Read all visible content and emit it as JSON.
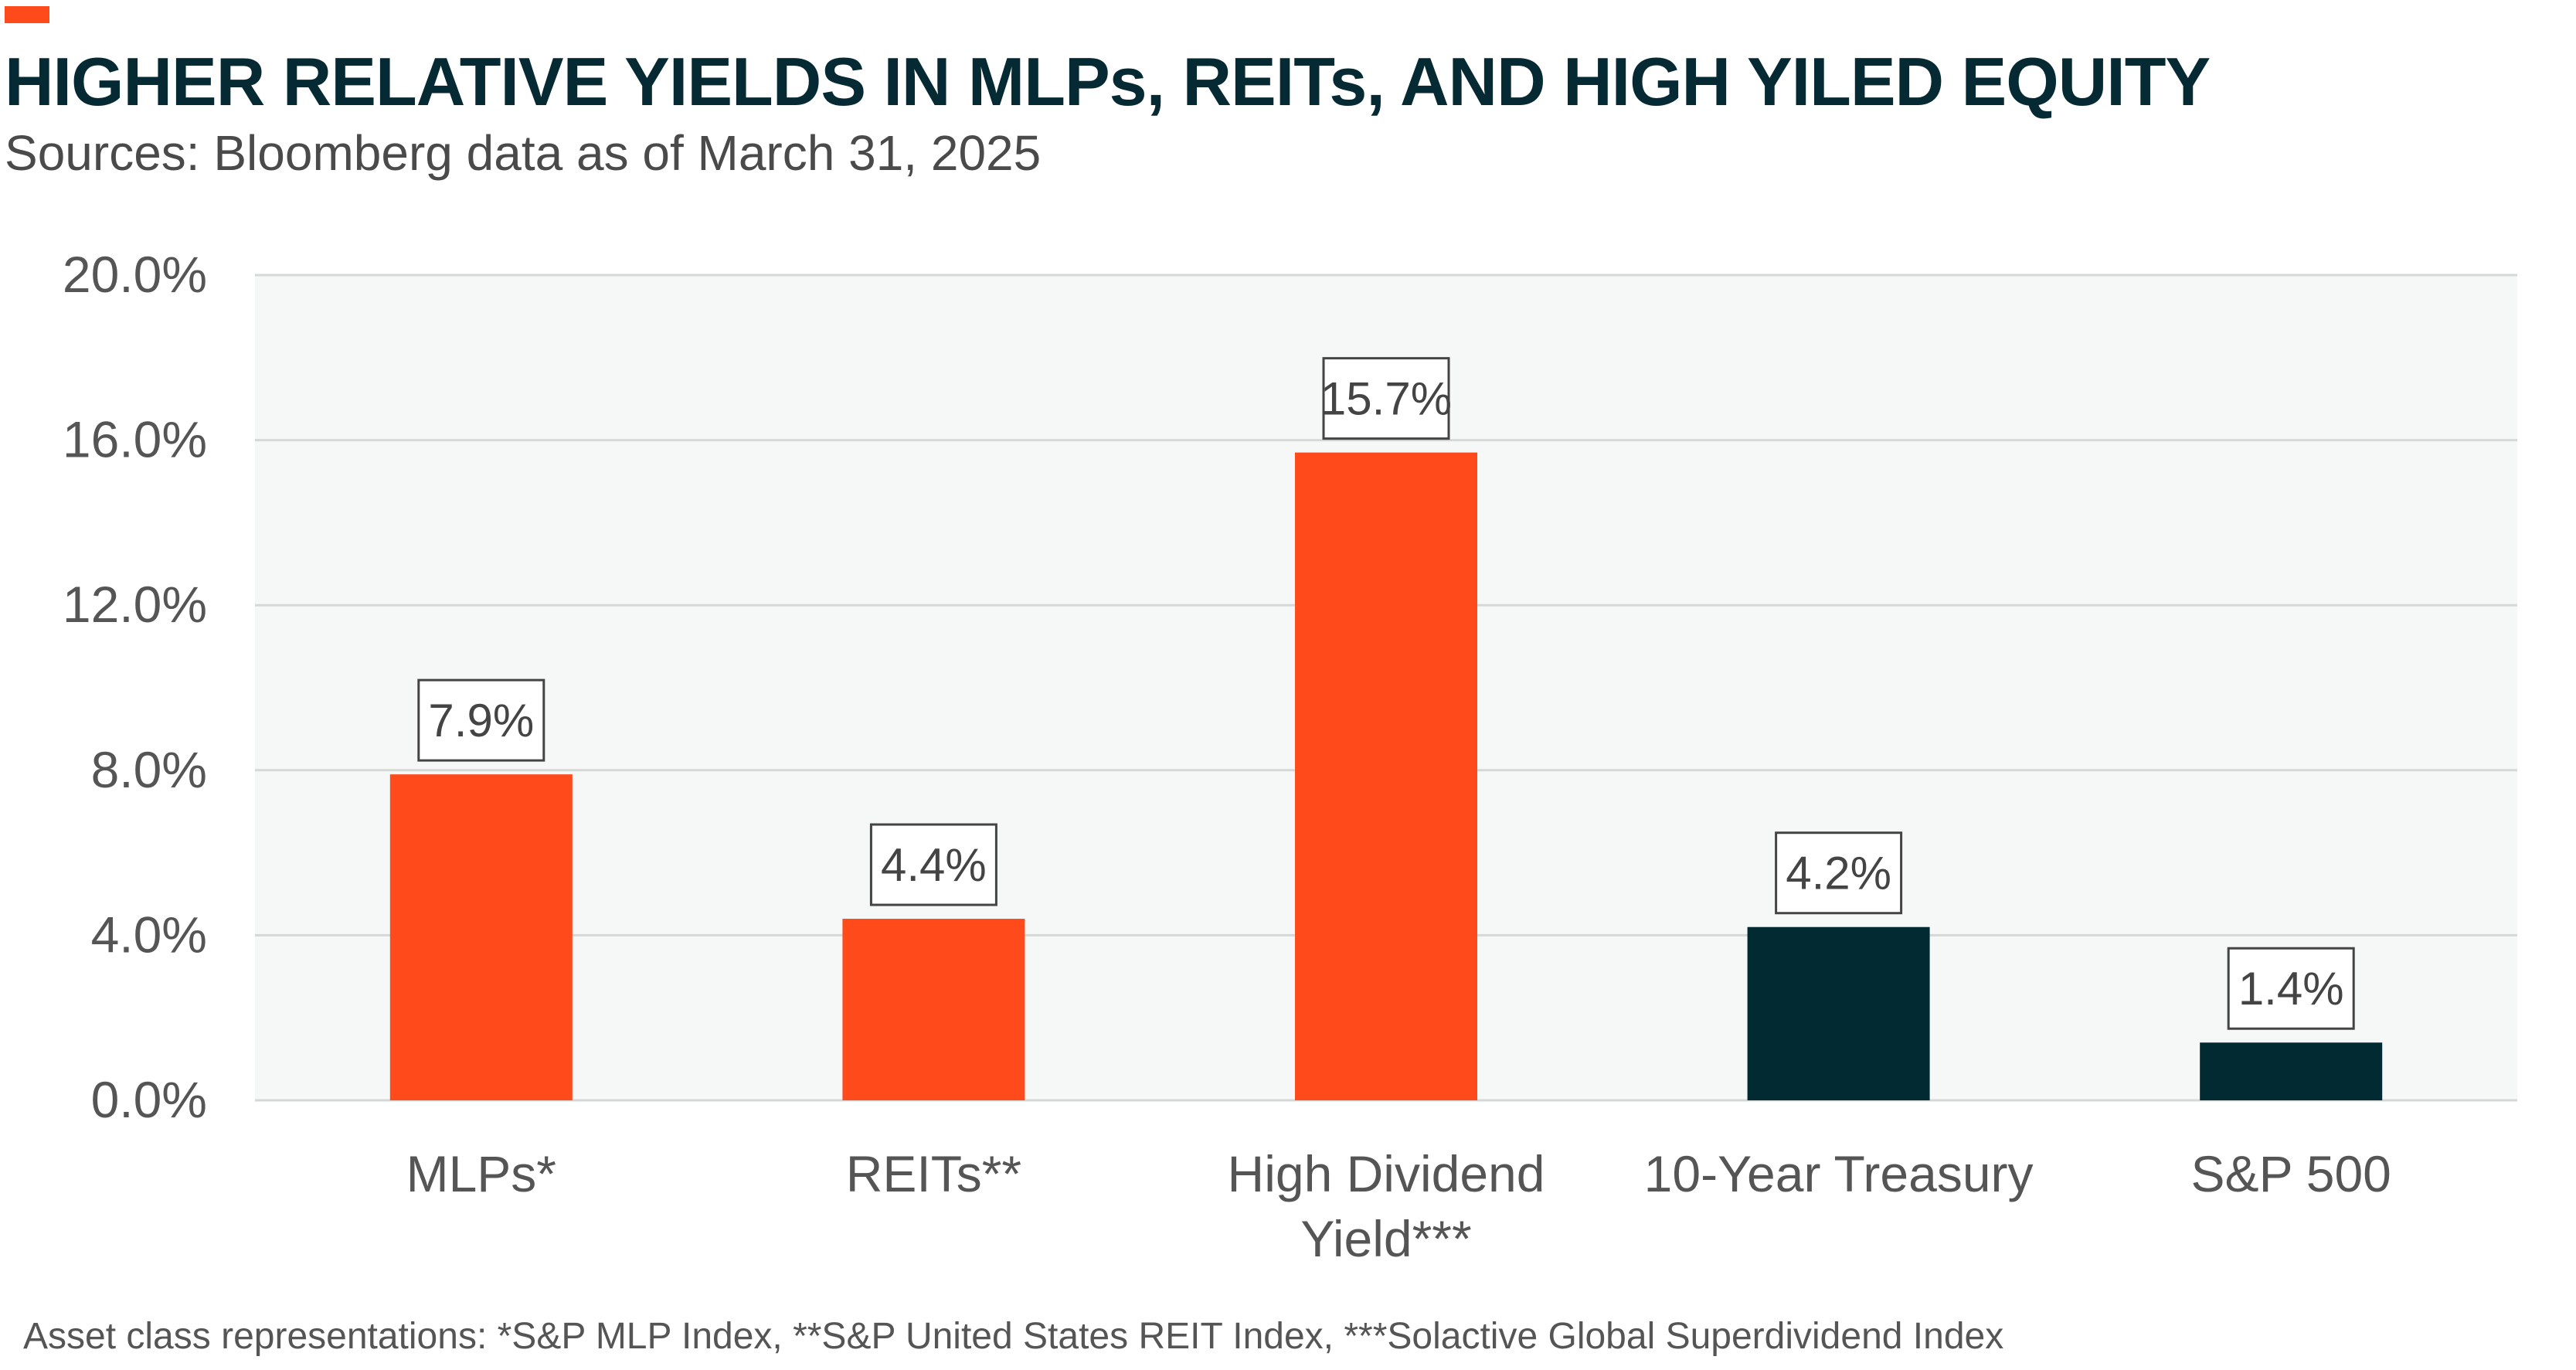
{
  "header": {
    "title": "HIGHER RELATIVE YIELDS IN MLPs, REITs, AND HIGH YILED EQUITY",
    "subtitle": "Sources: Bloomberg data as of March 31, 2025"
  },
  "footer": {
    "note": "Asset class representations: *S&P MLP Index, **S&P United States REIT Index, ***Solactive Global Superdividend Index"
  },
  "colors": {
    "accent": "#ff4a1c",
    "dark": "#022a33",
    "plot_bg": "#f6f8f7",
    "grid": "#d4d8d6"
  },
  "chart_data": {
    "type": "bar",
    "title": "HIGHER RELATIVE YIELDS IN MLPs, REITs, AND HIGH YILED EQUITY",
    "subtitle": "Sources: Bloomberg data as of March 31, 2025",
    "xlabel": "",
    "ylabel": "",
    "ylim": [
      0,
      20
    ],
    "yticks": [
      0,
      4,
      8,
      12,
      16,
      20
    ],
    "ytick_labels": [
      "0.0%",
      "4.0%",
      "8.0%",
      "12.0%",
      "16.0%",
      "20.0%"
    ],
    "grid": true,
    "categories": [
      [
        "MLPs*"
      ],
      [
        "REITs**"
      ],
      [
        "High Dividend",
        "Yield***"
      ],
      [
        "10-Year Treasury"
      ],
      [
        "S&P 500"
      ]
    ],
    "values": [
      7.9,
      4.4,
      15.7,
      4.2,
      1.4
    ],
    "data_labels": [
      "7.9%",
      "4.4%",
      "15.7%",
      "4.2%",
      "1.4%"
    ],
    "bar_colors": [
      "#ff4a1c",
      "#ff4a1c",
      "#ff4a1c",
      "#022a33",
      "#022a33"
    ]
  }
}
